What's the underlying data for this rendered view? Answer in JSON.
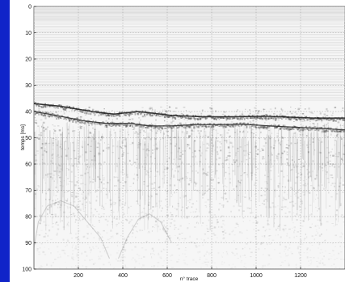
{
  "chart_data": {
    "type": "heatmap",
    "title": "",
    "xlabel": "n° trace",
    "ylabel": "temps [ms]",
    "xlim": [
      0,
      1400
    ],
    "ylim": [
      0,
      100
    ],
    "x_ticks": [
      200,
      400,
      600,
      800,
      1000,
      1200
    ],
    "y_ticks": [
      0,
      10,
      20,
      30,
      40,
      50,
      60,
      70,
      80,
      90,
      100
    ],
    "grid": true,
    "colormap": "grayscale",
    "reflectors": [
      {
        "name": "",
        "x": [
          0,
          120,
          260,
          360,
          470,
          520,
          620,
          760,
          900,
          1040,
          1160,
          1260,
          1400
        ],
        "y": [
          37,
          38,
          40,
          41,
          40,
          40.5,
          41.5,
          42,
          42,
          41.8,
          42.2,
          42.5,
          42.5
        ]
      },
      {
        "name": "",
        "x": [
          0,
          100,
          220,
          320,
          430,
          520,
          620,
          720,
          820,
          940,
          1060,
          1180,
          1300,
          1400
        ],
        "y": [
          40,
          41.5,
          43.5,
          44.5,
          44.5,
          45.5,
          45.5,
          45,
          45,
          44.8,
          45.5,
          46,
          46.5,
          47
        ]
      }
    ],
    "diffractions": [
      {
        "x": [
          0,
          20,
          60,
          120,
          180,
          240,
          300,
          340
        ],
        "y": [
          92,
          82,
          76,
          74,
          76,
          82,
          88,
          96
        ]
      },
      {
        "x": [
          380,
          420,
          470,
          520,
          570,
          620
        ],
        "y": [
          96,
          88,
          81,
          79,
          82,
          90
        ]
      }
    ]
  }
}
